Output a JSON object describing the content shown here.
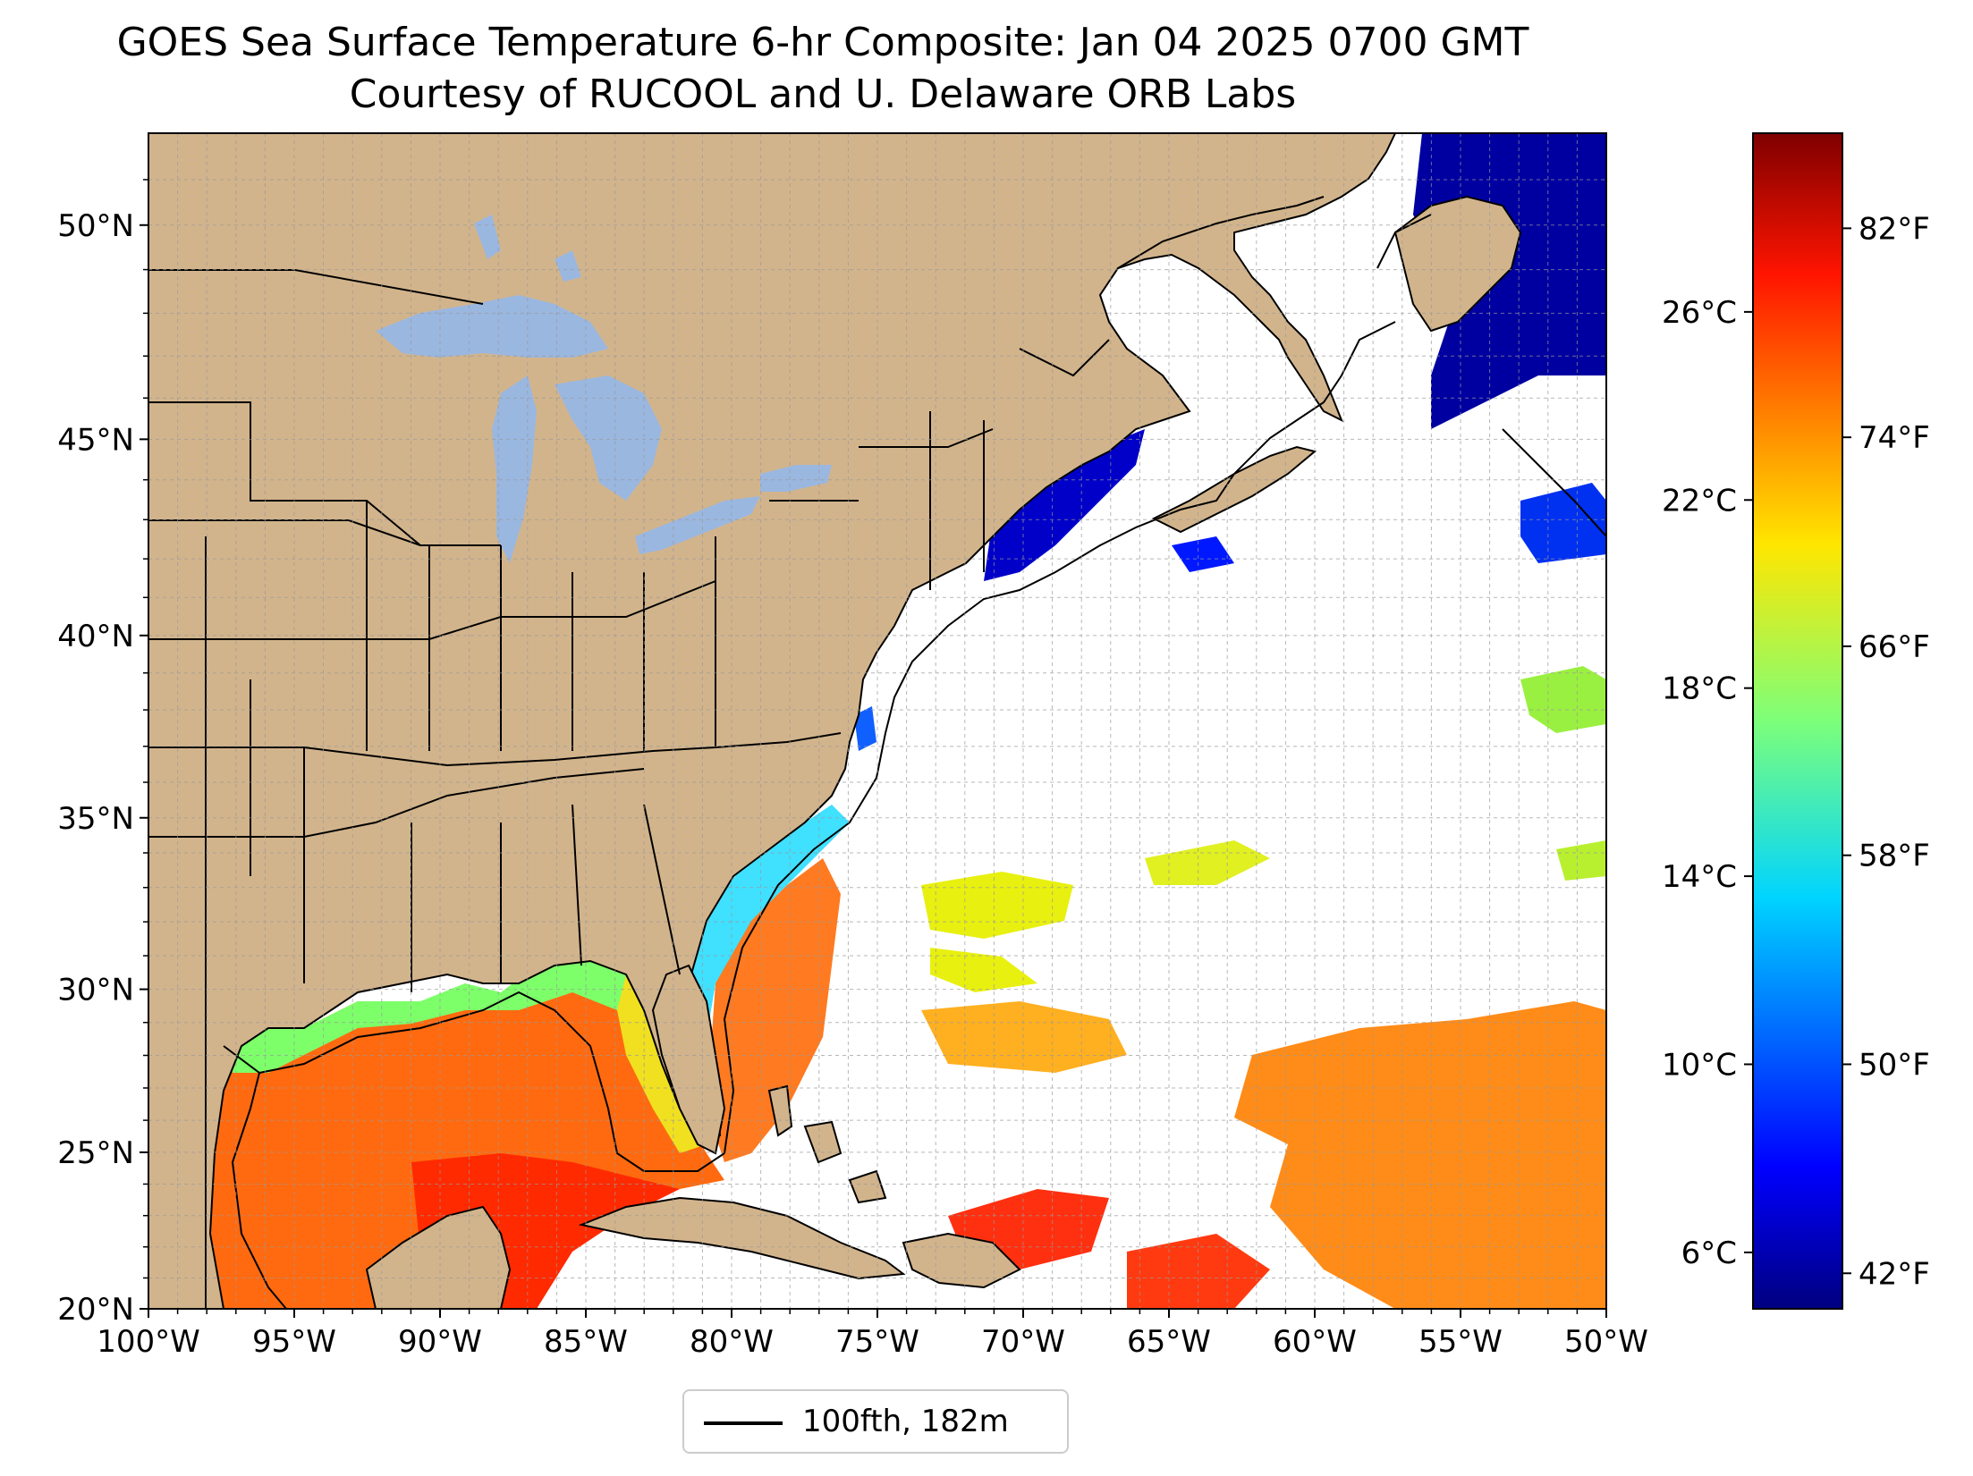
{
  "title_line1": "GOES Sea Surface Temperature 6-hr Composite: Jan 04 2025 0700 GMT",
  "title_line2": "Courtesy of RUCOOL and U. Delaware ORB Labs",
  "map": {
    "extent_lon": [
      -100,
      -50
    ],
    "extent_lat": [
      20,
      52
    ],
    "lon_ticks": [
      "100°W",
      "95°W",
      "90°W",
      "85°W",
      "80°W",
      "75°W",
      "70°W",
      "65°W",
      "60°W",
      "55°W",
      "50°W"
    ],
    "lat_ticks": [
      "20°N",
      "25°N",
      "30°N",
      "35°N",
      "40°N",
      "45°N",
      "50°N"
    ],
    "land_color": "#d2b48c",
    "lake_color": "#9ab7e0",
    "gridlines": true
  },
  "legend": {
    "label": "100fth, 182m",
    "placement": "bottom-center"
  },
  "colorbar": {
    "colormap": "jet",
    "celsius_labels": [
      "6°C",
      "10°C",
      "14°C",
      "18°C",
      "22°C",
      "26°C"
    ],
    "fahrenheit_labels": [
      "42°F",
      "50°F",
      "58°F",
      "66°F",
      "74°F",
      "82°F"
    ]
  },
  "colors": {
    "cold": "#00008f",
    "blue": "#0040ff",
    "cyan": "#00e0ff",
    "green": "#60ff90",
    "yellow": "#f0ff10",
    "orange": "#ff8a10",
    "red": "#ff2000"
  }
}
